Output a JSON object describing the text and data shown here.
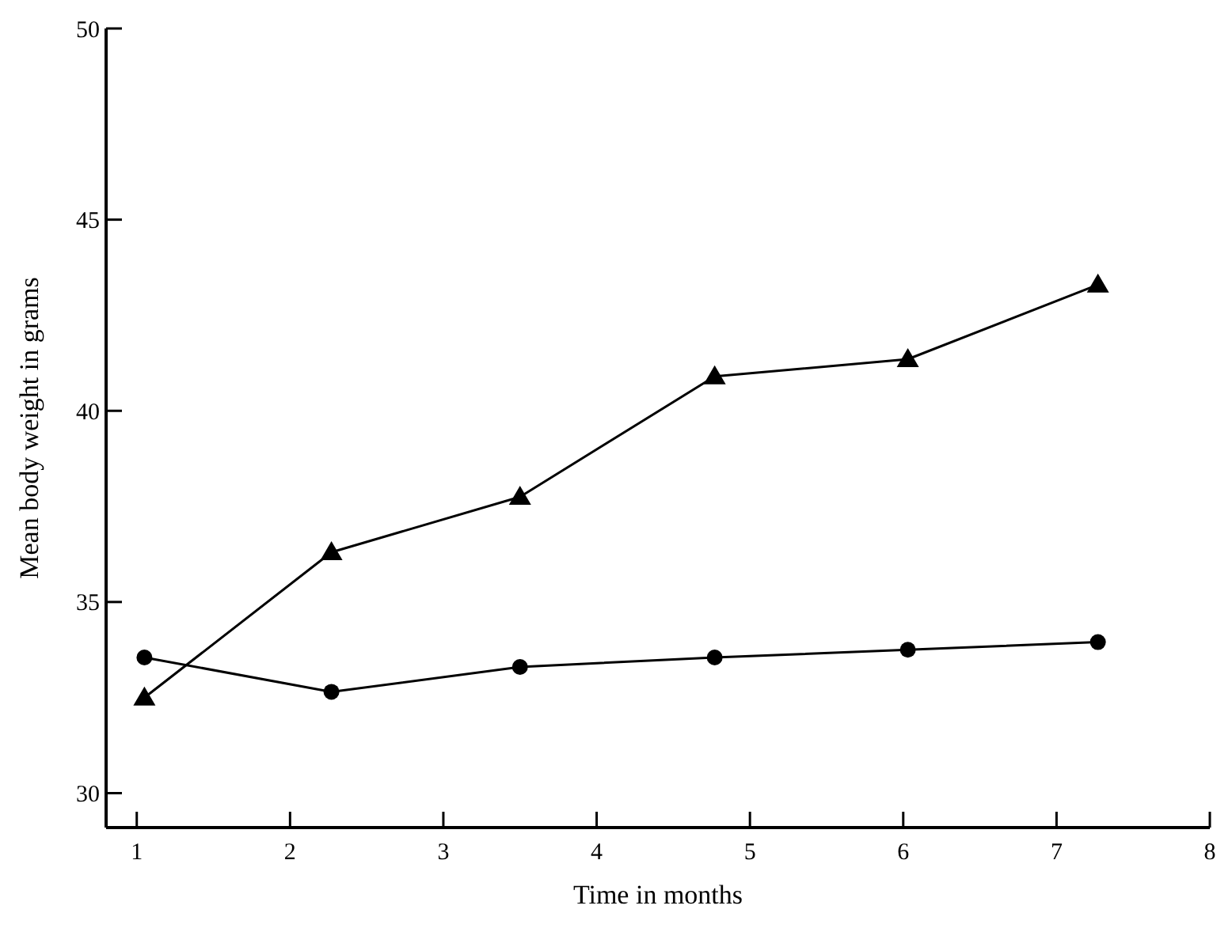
{
  "chart_data": {
    "type": "line",
    "xlabel": "Time in months",
    "ylabel": "Mean body weight in grams",
    "x": [
      1.05,
      2.27,
      3.5,
      4.77,
      6.03,
      7.27
    ],
    "series": [
      {
        "color": "#000000",
        "marker": "triangle",
        "values": [
          32.5,
          36.3,
          37.75,
          40.9,
          41.35,
          43.3
        ]
      },
      {
        "color": "#000000",
        "marker": "circle",
        "values": [
          33.55,
          32.65,
          33.3,
          33.55,
          33.75,
          33.95
        ]
      }
    ],
    "xlim": [
      0.8,
      8
    ],
    "xticks": [
      1,
      2,
      3,
      4,
      5,
      6,
      7,
      8
    ],
    "ylim": [
      29.1,
      50
    ],
    "yticks": [
      30,
      35,
      40,
      45,
      50
    ],
    "grid": false,
    "line_style": "solid"
  }
}
